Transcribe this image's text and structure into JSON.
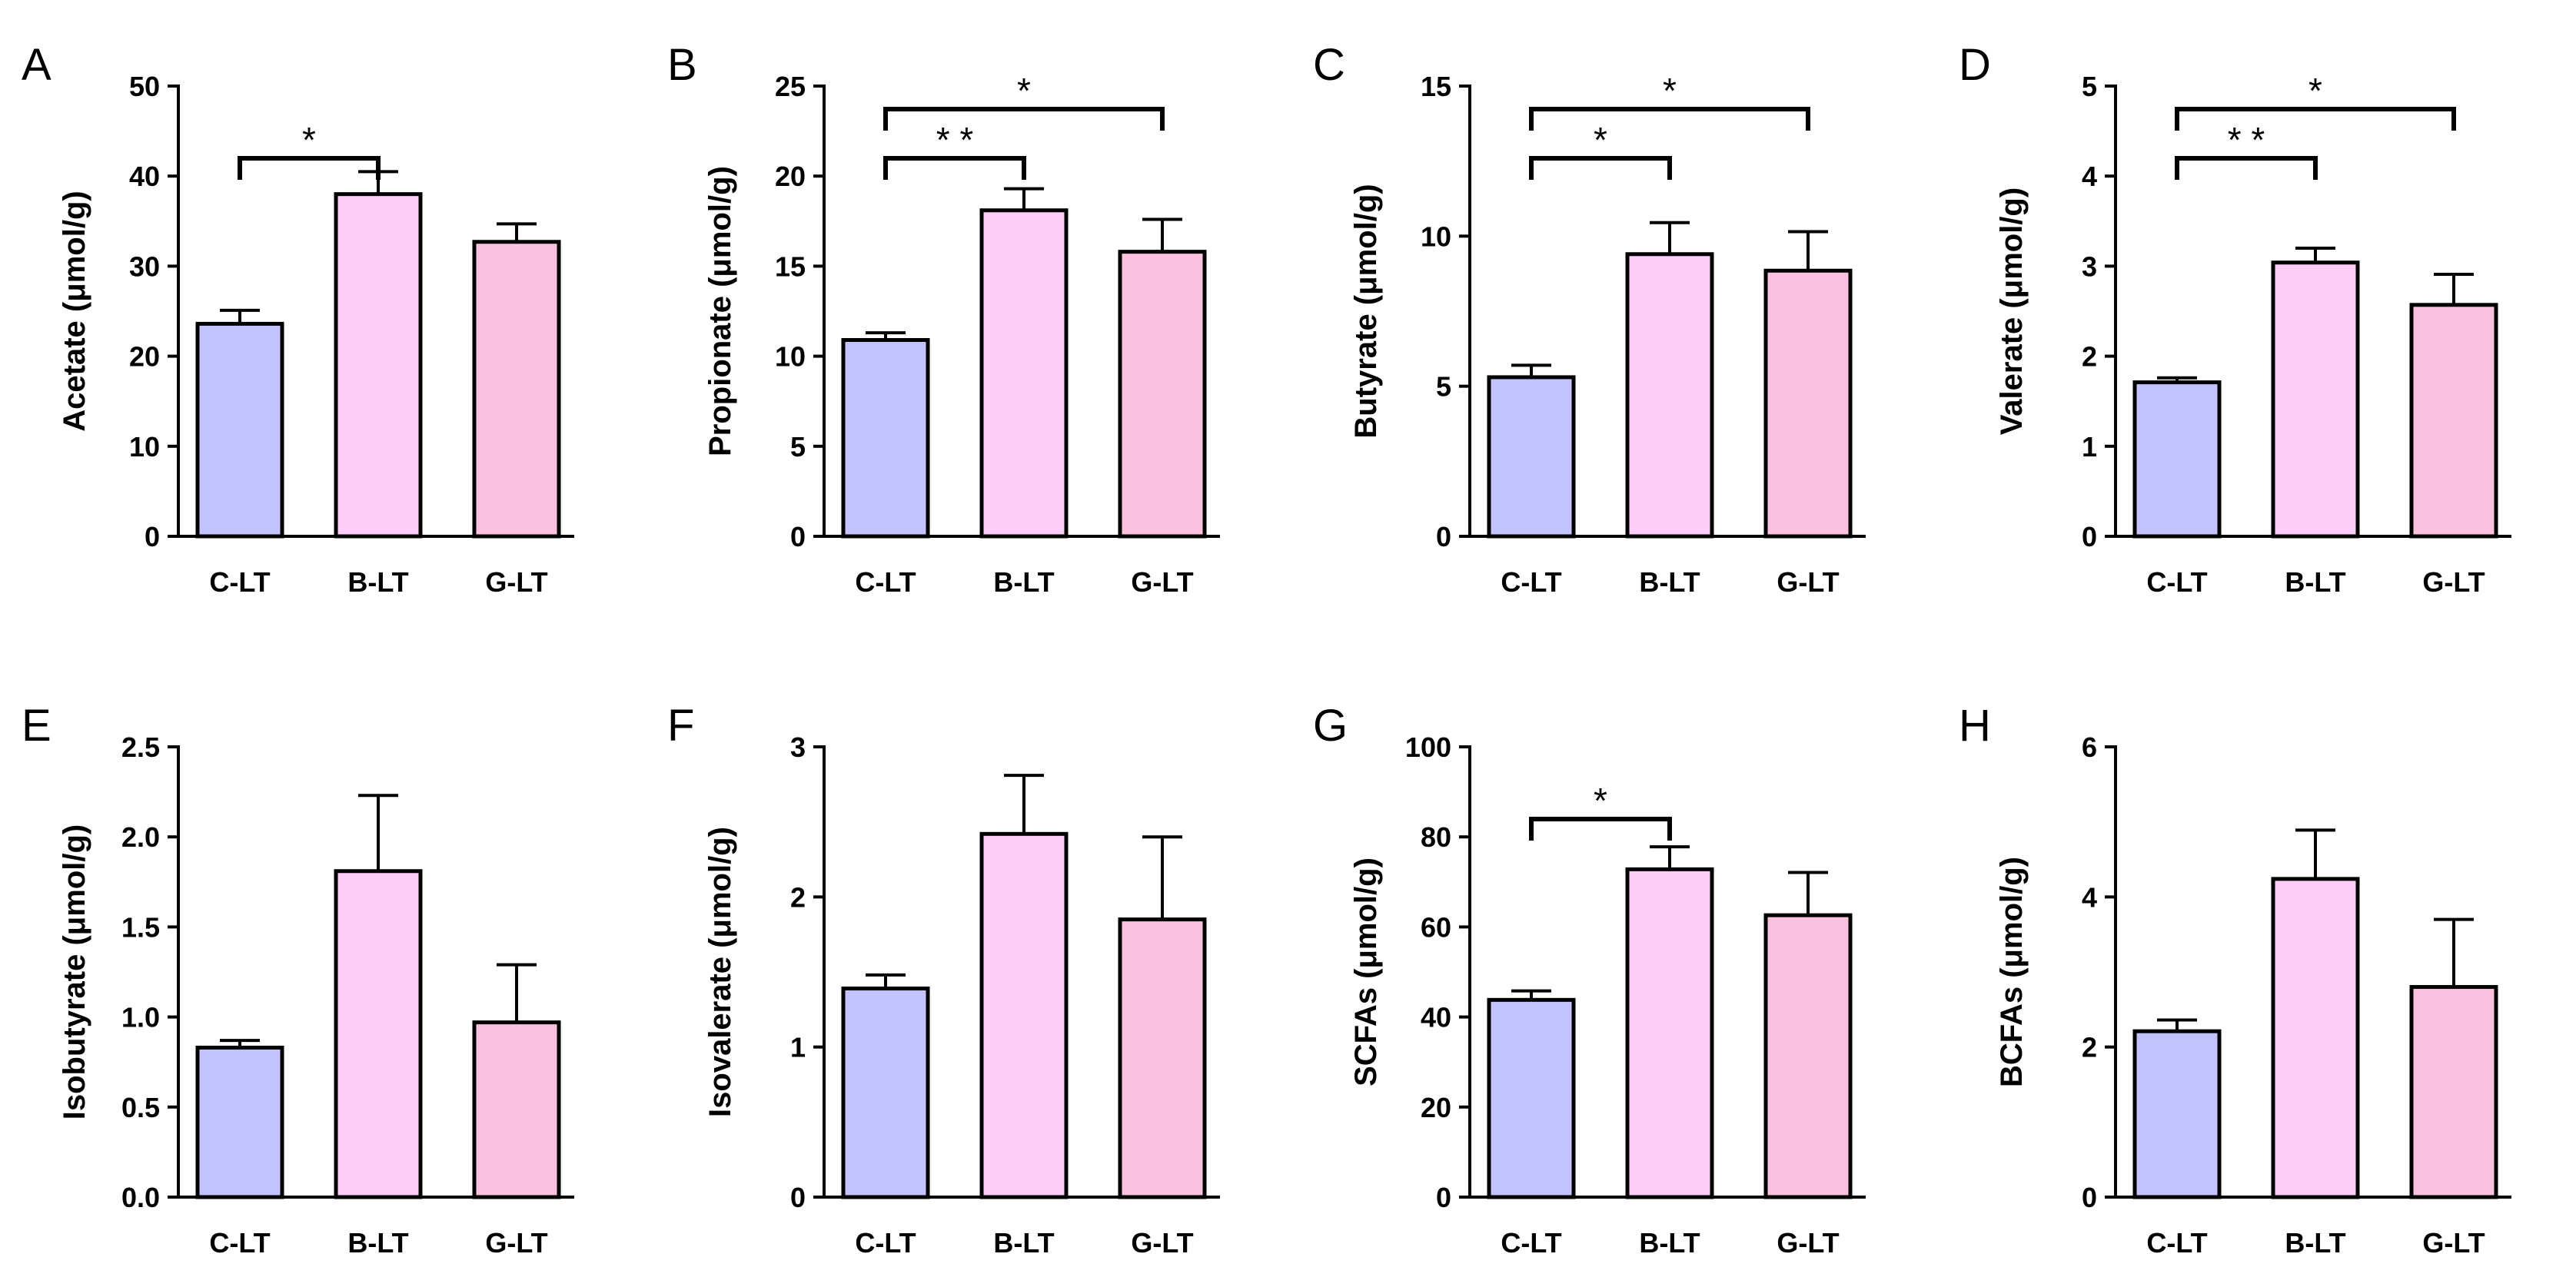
{
  "figure": {
    "background": "#ffffff",
    "bar_colors": [
      "#c2c2ff",
      "#fdccf9",
      "#fcc1df"
    ],
    "ink_color": "#000000"
  },
  "chart_data": [
    {
      "letter": "A",
      "type": "bar",
      "ylabel": "Acetate (μmol/g)",
      "categories": [
        "C-LT",
        "B-LT",
        "G-LT"
      ],
      "values": [
        23.6,
        38.0,
        32.7
      ],
      "errors": [
        1.5,
        2.5,
        2.0
      ],
      "ylim": [
        0,
        50
      ],
      "yticks": [
        "0",
        "10",
        "20",
        "30",
        "40",
        "50"
      ],
      "significance": [
        {
          "from": 0,
          "to": 1,
          "level": 1,
          "label": "*"
        }
      ]
    },
    {
      "letter": "B",
      "type": "bar",
      "ylabel": "Propionate (μmol/g)",
      "categories": [
        "C-LT",
        "B-LT",
        "G-LT"
      ],
      "values": [
        10.9,
        18.1,
        15.8
      ],
      "errors": [
        0.4,
        1.2,
        1.8
      ],
      "ylim": [
        0,
        25
      ],
      "yticks": [
        "0",
        "5",
        "10",
        "15",
        "20",
        "25"
      ],
      "significance": [
        {
          "from": 0,
          "to": 1,
          "level": 1,
          "label": "* *"
        },
        {
          "from": 0,
          "to": 2,
          "level": 2,
          "label": "*"
        }
      ]
    },
    {
      "letter": "C",
      "type": "bar",
      "ylabel": "Butyrate (μmol/g)",
      "categories": [
        "C-LT",
        "B-LT",
        "G-LT"
      ],
      "values": [
        5.3,
        9.4,
        8.85
      ],
      "errors": [
        0.4,
        1.05,
        1.3
      ],
      "ylim": [
        0,
        15
      ],
      "yticks": [
        "0",
        "5",
        "10",
        "15"
      ],
      "significance": [
        {
          "from": 0,
          "to": 1,
          "level": 1,
          "label": "*"
        },
        {
          "from": 0,
          "to": 2,
          "level": 2,
          "label": "*"
        }
      ]
    },
    {
      "letter": "D",
      "type": "bar",
      "ylabel": "Valerate (μmol/g)",
      "categories": [
        "C-LT",
        "B-LT",
        "G-LT"
      ],
      "values": [
        1.71,
        3.04,
        2.57
      ],
      "errors": [
        0.05,
        0.16,
        0.34
      ],
      "ylim": [
        0,
        5
      ],
      "yticks": [
        "0",
        "1",
        "2",
        "3",
        "4",
        "5"
      ],
      "significance": [
        {
          "from": 0,
          "to": 1,
          "level": 1,
          "label": "* *"
        },
        {
          "from": 0,
          "to": 2,
          "level": 2,
          "label": "*"
        }
      ]
    },
    {
      "letter": "E",
      "type": "bar",
      "ylabel": "Isobutyrate (μmol/g)",
      "categories": [
        "C-LT",
        "B-LT",
        "G-LT"
      ],
      "values": [
        0.83,
        1.81,
        0.97
      ],
      "errors": [
        0.04,
        0.42,
        0.32
      ],
      "ylim": [
        0,
        2.5
      ],
      "yticks": [
        "0.0",
        "0.5",
        "1.0",
        "1.5",
        "2.0",
        "2.5"
      ],
      "significance": []
    },
    {
      "letter": "F",
      "type": "bar",
      "ylabel": "Isovalerate (μmol/g)",
      "categories": [
        "C-LT",
        "B-LT",
        "G-LT"
      ],
      "values": [
        1.39,
        2.42,
        1.85
      ],
      "errors": [
        0.09,
        0.39,
        0.55
      ],
      "ylim": [
        0,
        3
      ],
      "yticks": [
        "0",
        "1",
        "2",
        "3"
      ],
      "significance": []
    },
    {
      "letter": "G",
      "type": "bar",
      "ylabel": "SCFAs (μmol/g)",
      "categories": [
        "C-LT",
        "B-LT",
        "G-LT"
      ],
      "values": [
        43.8,
        72.8,
        62.6
      ],
      "errors": [
        2.0,
        5.0,
        9.5
      ],
      "ylim": [
        0,
        100
      ],
      "yticks": [
        "0",
        "20",
        "40",
        "60",
        "80",
        "100"
      ],
      "significance": [
        {
          "from": 0,
          "to": 1,
          "level": 1,
          "label": "*"
        }
      ]
    },
    {
      "letter": "H",
      "type": "bar",
      "ylabel": "BCFAs (μmol/g)",
      "categories": [
        "C-LT",
        "B-LT",
        "G-LT"
      ],
      "values": [
        2.21,
        4.24,
        2.8
      ],
      "errors": [
        0.15,
        0.65,
        0.9
      ],
      "ylim": [
        0,
        6
      ],
      "yticks": [
        "0",
        "2",
        "4",
        "6"
      ],
      "significance": []
    }
  ]
}
